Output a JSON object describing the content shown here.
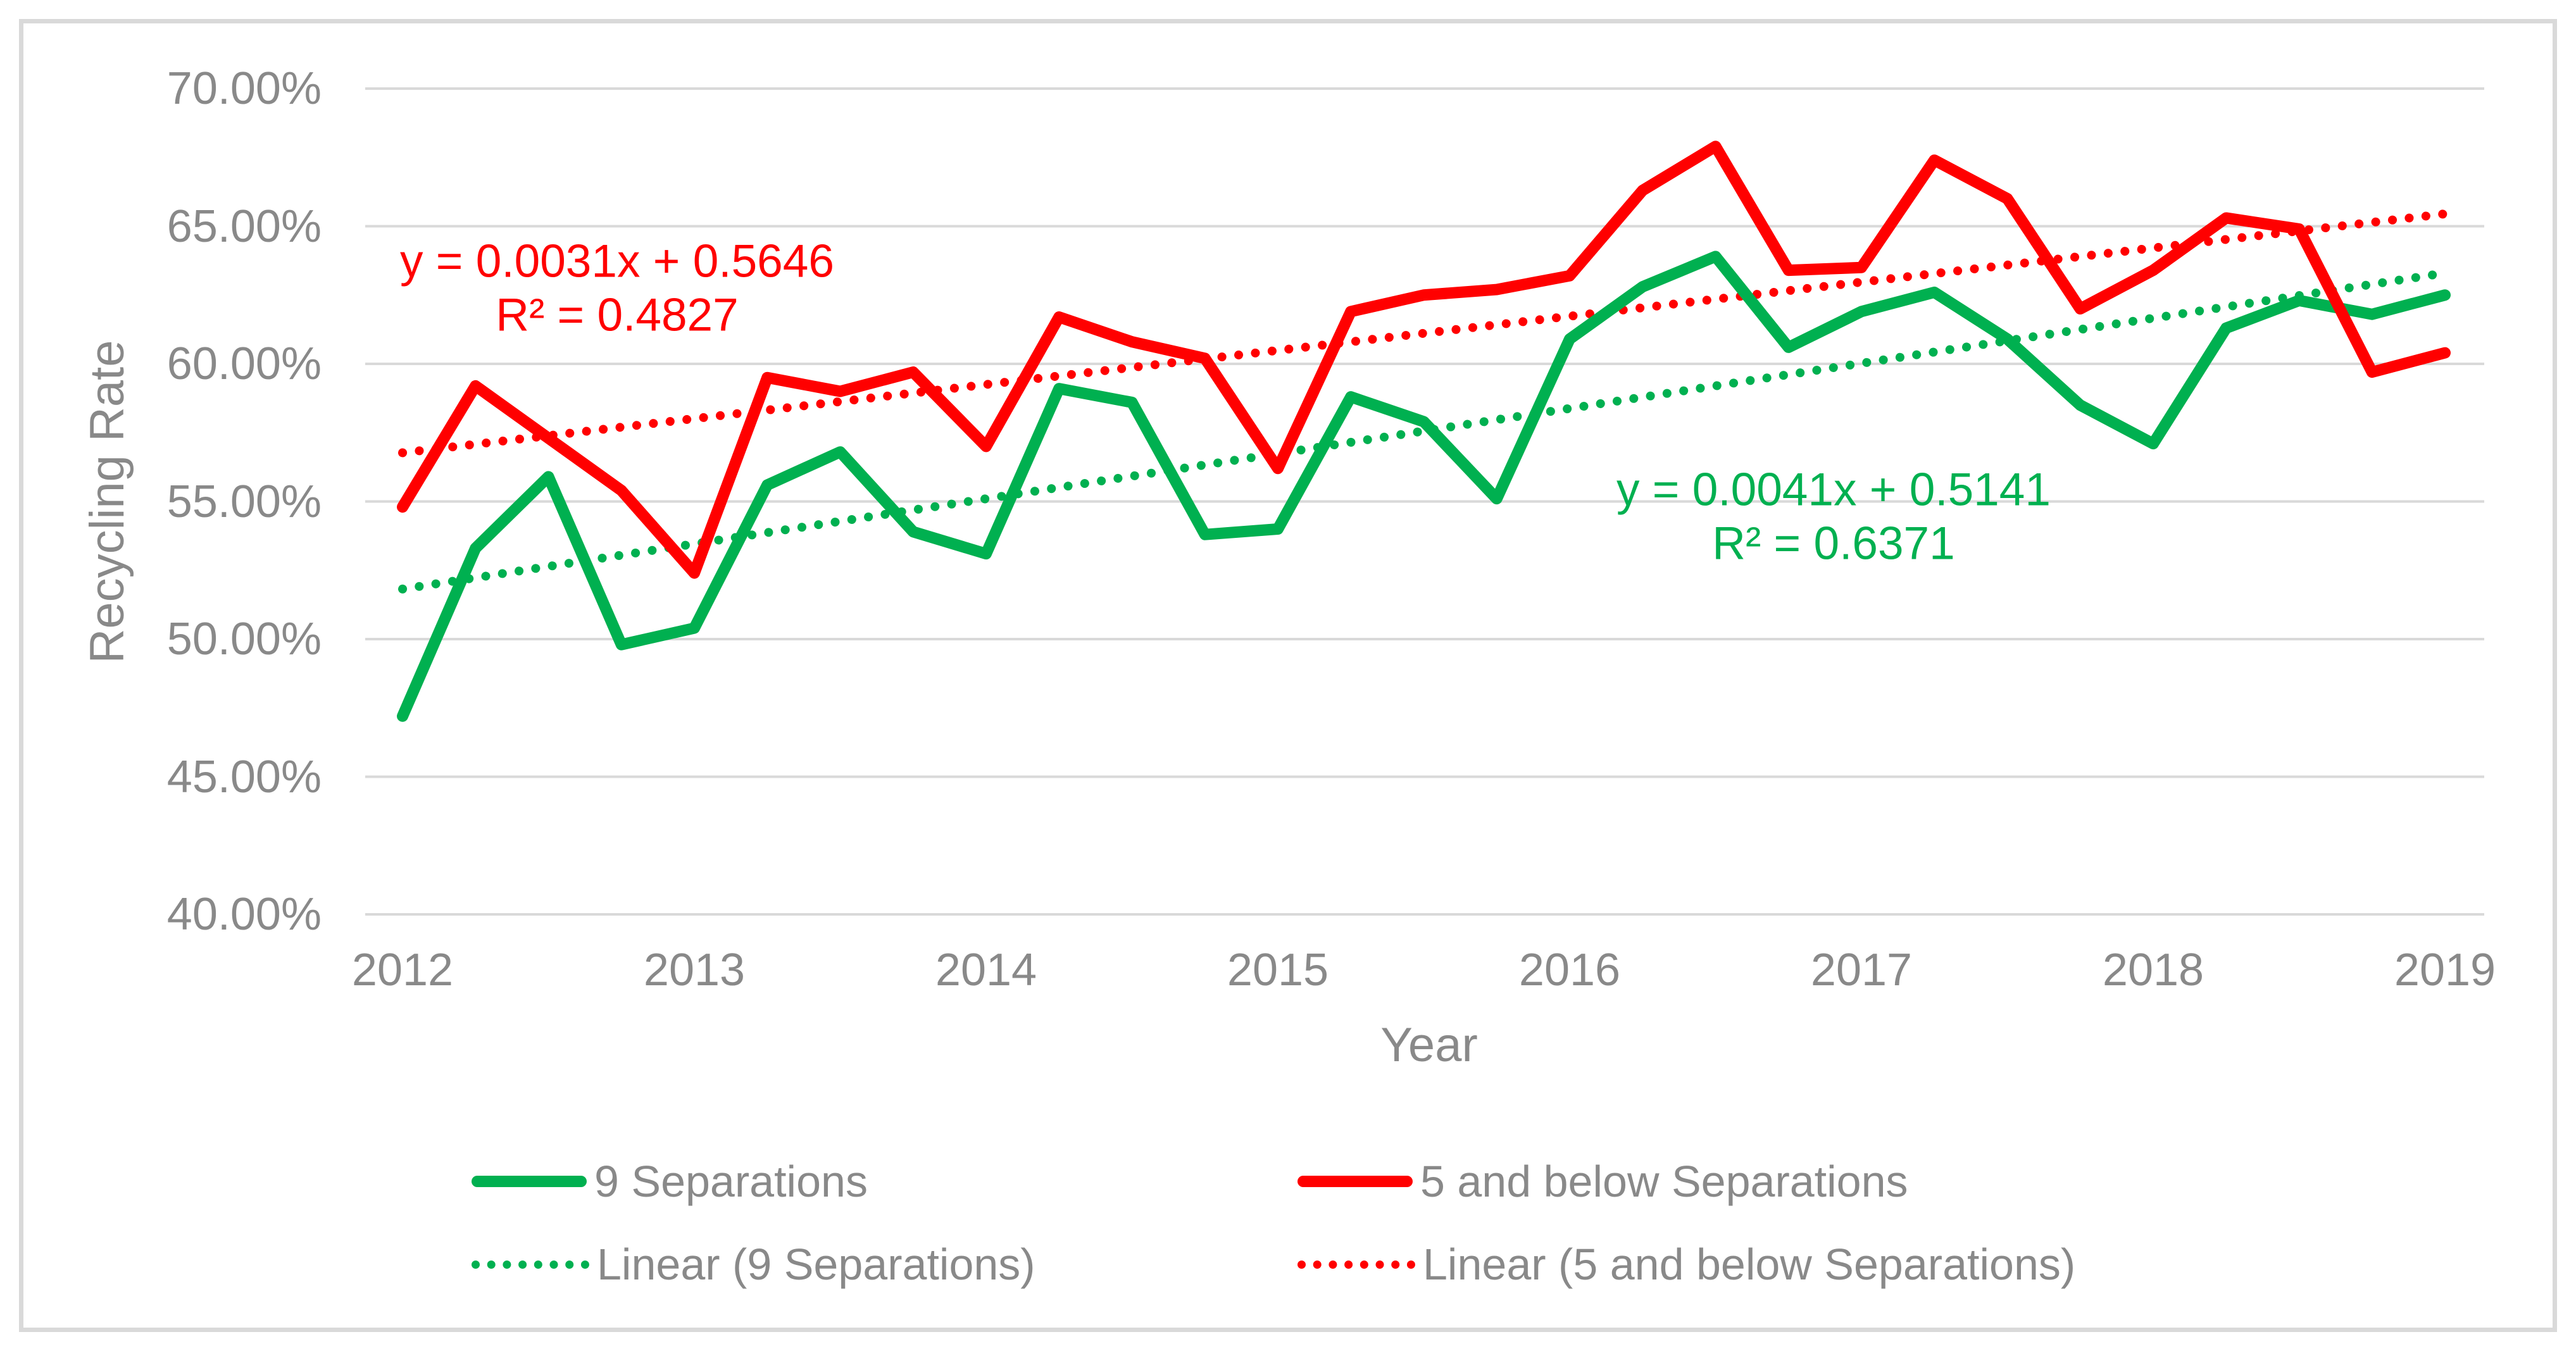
{
  "chart_data": {
    "type": "line",
    "title": "",
    "xlabel": "Year",
    "ylabel": "Recycling Rate",
    "x_frequency": "quarterly",
    "x": [
      2012.0,
      2012.25,
      2012.5,
      2012.75,
      2013.0,
      2013.25,
      2013.5,
      2013.75,
      2014.0,
      2014.25,
      2014.5,
      2014.75,
      2015.0,
      2015.25,
      2015.5,
      2015.75,
      2016.0,
      2016.25,
      2016.5,
      2016.75,
      2017.0,
      2017.25,
      2017.5,
      2017.75,
      2018.0,
      2018.25,
      2018.5,
      2018.75,
      2019.0
    ],
    "series": [
      {
        "name": "9 Separations",
        "color": "#00B050",
        "style": "solid",
        "values_pct": [
          47.2,
          53.3,
          55.9,
          49.8,
          50.4,
          55.6,
          56.8,
          53.9,
          53.1,
          59.1,
          58.6,
          53.8,
          54.0,
          58.8,
          57.9,
          55.1,
          60.9,
          62.8,
          63.9,
          60.6,
          61.9,
          62.6,
          60.9,
          58.5,
          57.1,
          61.3,
          62.3,
          61.8,
          62.5
        ]
      },
      {
        "name": "5 and below Separations",
        "color": "#FF0000",
        "style": "solid",
        "values_pct": [
          54.8,
          59.2,
          57.3,
          55.4,
          52.4,
          59.5,
          59.0,
          59.7,
          57.0,
          61.7,
          60.8,
          60.2,
          56.2,
          61.9,
          62.5,
          62.7,
          63.2,
          66.3,
          67.9,
          63.4,
          63.5,
          67.4,
          66.0,
          62.0,
          63.4,
          65.3,
          64.9,
          59.7,
          60.4
        ]
      }
    ],
    "trendlines": [
      {
        "name": "Linear (9 Separations)",
        "color": "#00B050",
        "style": "dotted",
        "equation": "y = 0.0041x + 0.5141",
        "r2": "R² = 0.6371",
        "slope_pct_per_quarter": 0.41,
        "intercept_pct": 51.41
      },
      {
        "name": "Linear (5 and below Separations)",
        "color": "#FF0000",
        "style": "dotted",
        "equation": "y = 0.0031x + 0.5646",
        "r2": "R² = 0.4827",
        "slope_pct_per_quarter": 0.31,
        "intercept_pct": 56.46
      }
    ],
    "y_axis": {
      "tick_labels": [
        "70.00%",
        "65.00%",
        "60.00%",
        "55.00%",
        "50.00%",
        "45.00%",
        "40.00%"
      ],
      "tick_values": [
        70,
        65,
        60,
        55,
        50,
        45,
        40
      ],
      "min": 40,
      "max": 70,
      "step": 5
    },
    "x_axis": {
      "tick_labels": [
        "2012",
        "2013",
        "2014",
        "2015",
        "2016",
        "2017",
        "2018",
        "2019"
      ],
      "tick_values": [
        2012,
        2013,
        2014,
        2015,
        2016,
        2017,
        2018,
        2019
      ]
    },
    "grid": "horizontal-only",
    "gridline_color": "#D9D9D9",
    "legend_position": "bottom",
    "ylim": [
      40,
      70
    ]
  }
}
